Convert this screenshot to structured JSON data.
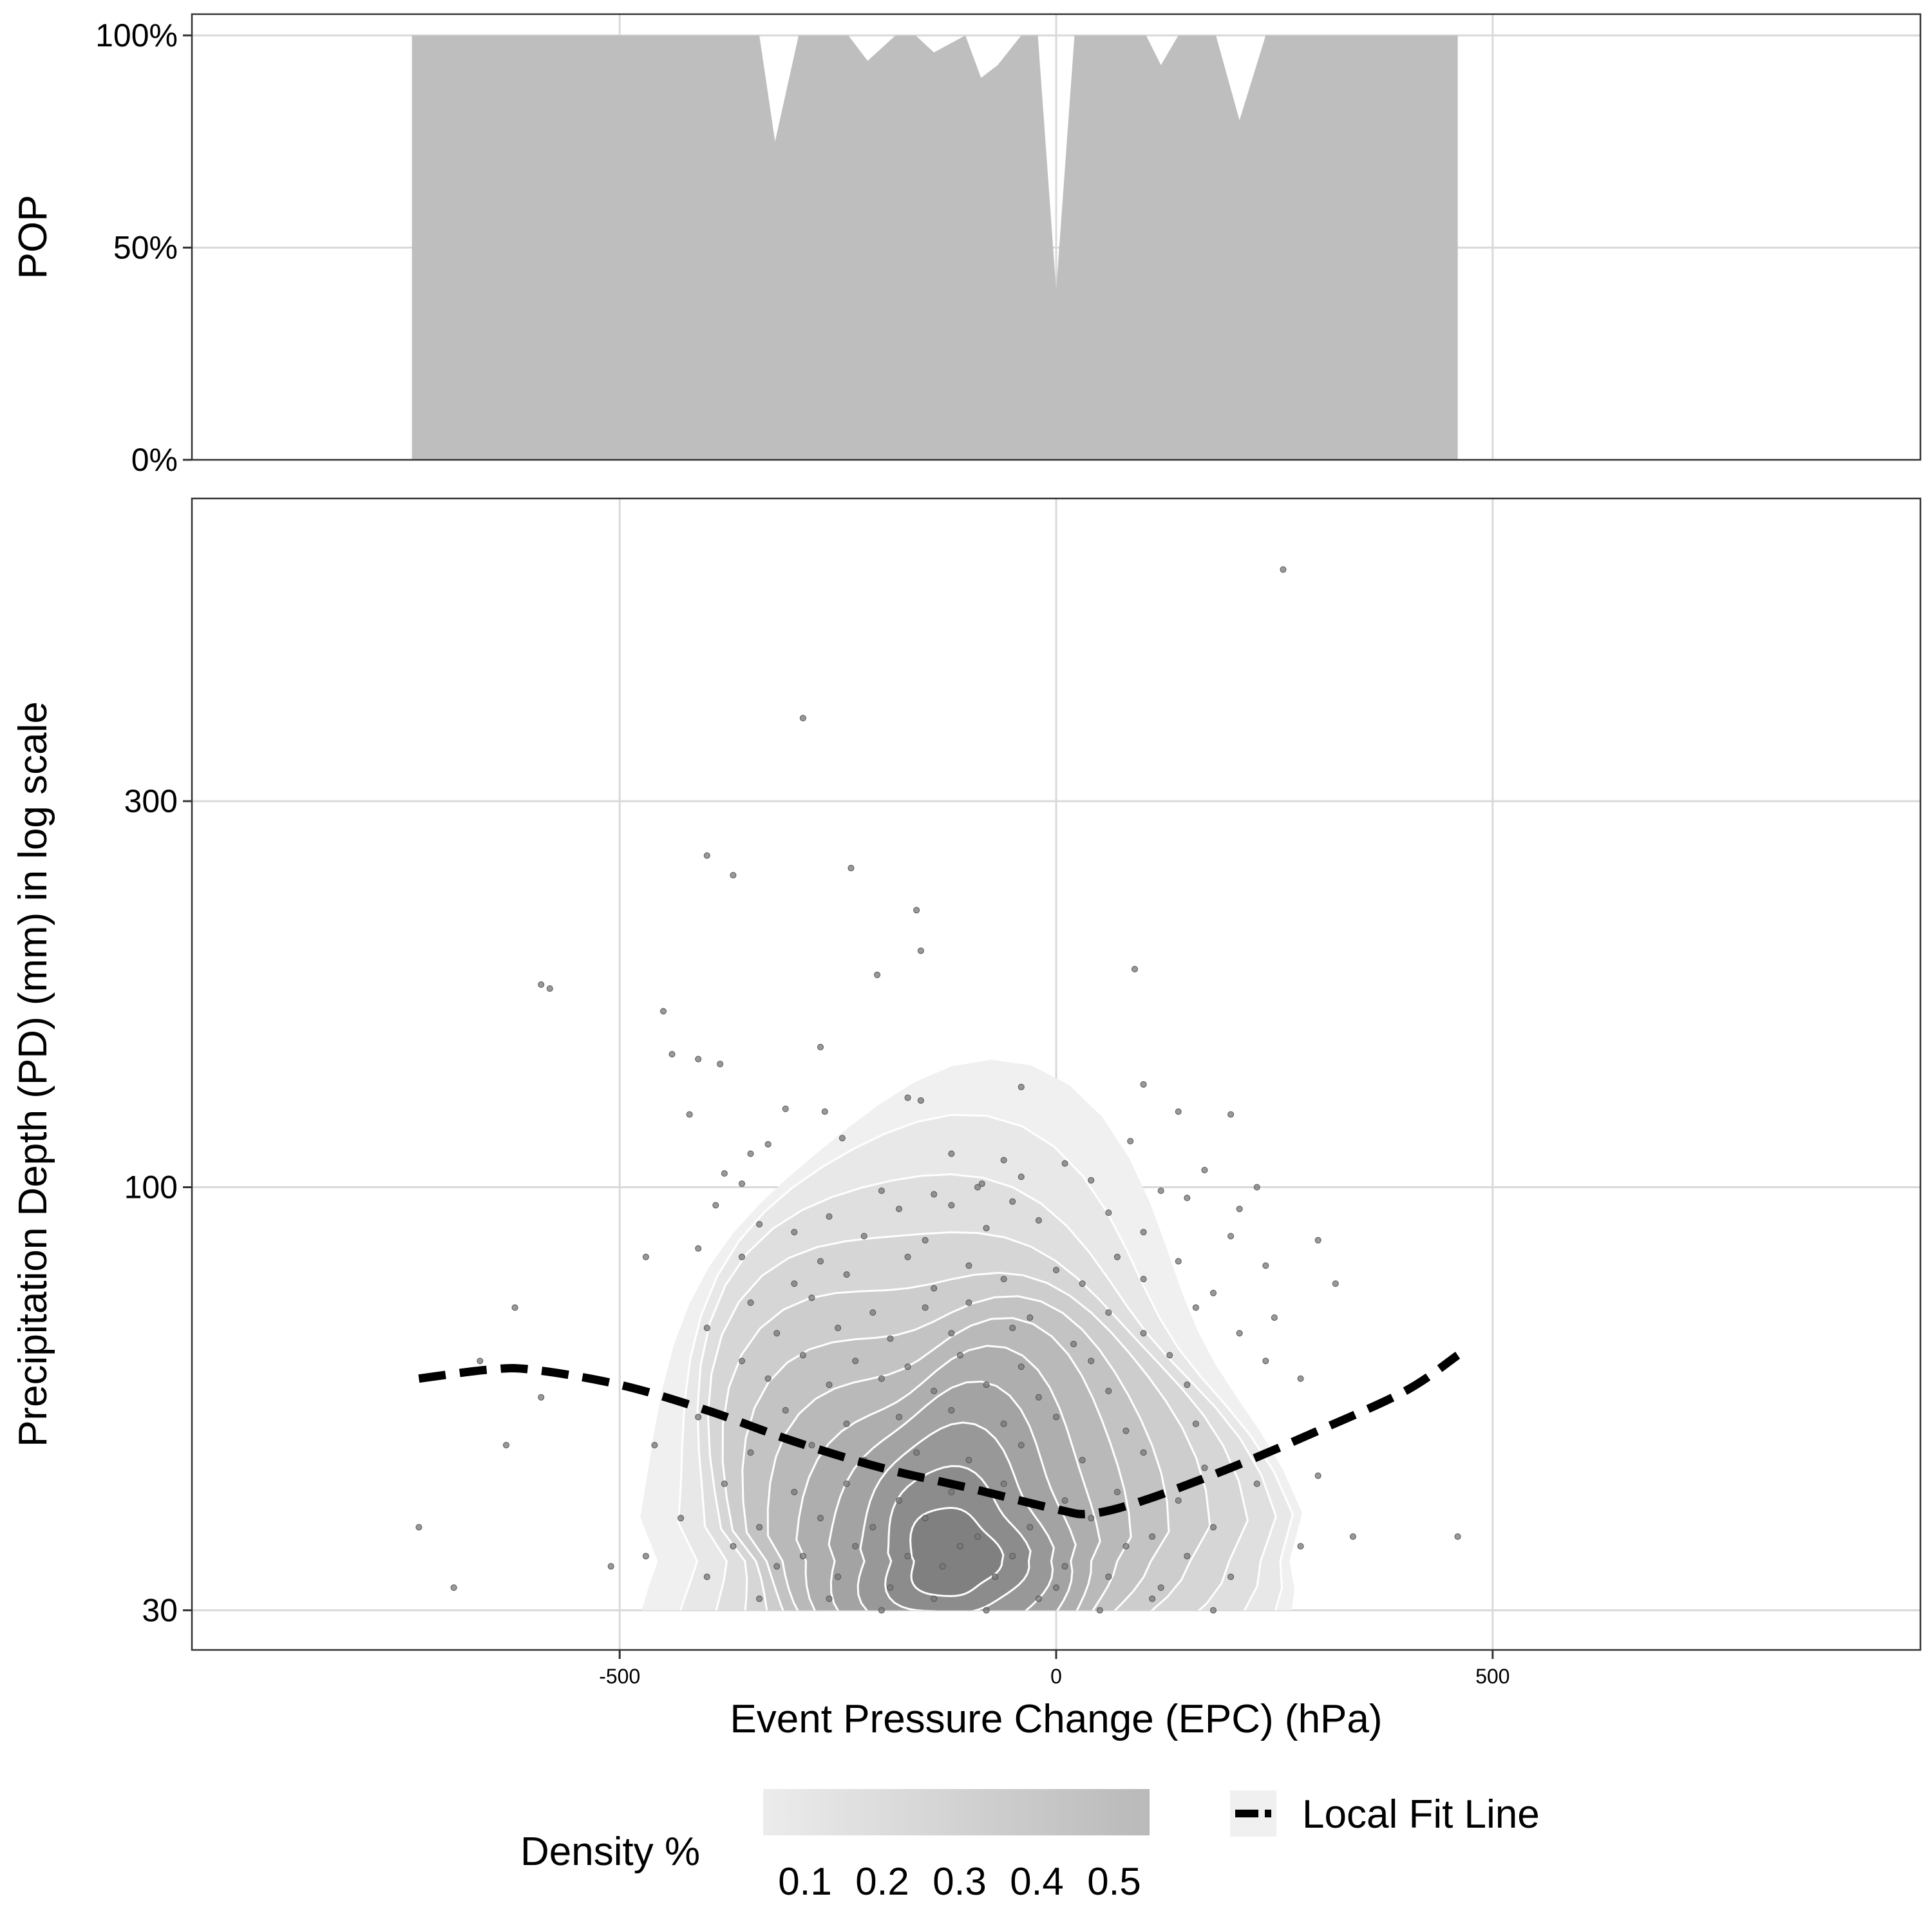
{
  "chart_data": [
    {
      "type": "area",
      "ylabel": "POP",
      "y_ticks": [
        "0%",
        "50%",
        "100%"
      ],
      "ylim": [
        0,
        1.05
      ],
      "xlim": [
        -990,
        990
      ],
      "grid": true,
      "x": [
        -738,
        -340,
        -322,
        -295,
        -238,
        -216,
        -184,
        -161,
        -140,
        -104,
        -86,
        -67,
        -40,
        -21,
        0,
        21,
        40,
        103,
        120,
        140,
        183,
        210,
        240,
        460
      ],
      "values": [
        1.0,
        1.0,
        0.75,
        1.0,
        1.0,
        0.94,
        1.0,
        1.0,
        0.96,
        1.0,
        0.9,
        0.93,
        1.0,
        1.0,
        0.4,
        1.0,
        1.0,
        1.0,
        0.93,
        1.0,
        1.0,
        0.8,
        1.0,
        1.0
      ]
    },
    {
      "type": "scatter",
      "xlabel": "Event Pressure Change (EPC) (hPa)",
      "ylabel": "Precipitation Depth (PD) (mm) in log scale",
      "x_ticks": [
        "-500",
        "0",
        "500"
      ],
      "y_ticks": [
        "30",
        "100",
        "300"
      ],
      "y_scale": "log",
      "xlim": [
        -990,
        990
      ],
      "ylim": [
        26.8,
        710
      ],
      "grid": true,
      "series": [
        {
          "name": "Local Fit Line",
          "x": [
            -730,
            -650,
            -600,
            -500,
            -400,
            -300,
            -200,
            -100,
            0,
            40,
            100,
            200,
            300,
            400,
            460
          ],
          "y": [
            58,
            59.5,
            59.5,
            57,
            53,
            48.5,
            45,
            42.5,
            40,
            39.5,
            41,
            45,
            50,
            56,
            62
          ]
        },
        {
          "points": [
            [
              260,
              580
            ],
            [
              -290,
              380
            ],
            [
              -400,
              257
            ],
            [
              -370,
              243
            ],
            [
              -235,
              248
            ],
            [
              -160,
              220
            ],
            [
              -155,
              196
            ],
            [
              -205,
              183
            ],
            [
              90,
              186
            ],
            [
              -590,
              178
            ],
            [
              -580,
              176
            ],
            [
              -450,
              165
            ],
            [
              -270,
              149
            ],
            [
              -440,
              146
            ],
            [
              -410,
              144
            ],
            [
              -385,
              142
            ],
            [
              100,
              134
            ],
            [
              -40,
              133
            ],
            [
              -155,
              128
            ],
            [
              -170,
              129
            ],
            [
              -310,
              125
            ],
            [
              -265,
              124
            ],
            [
              -420,
              123
            ],
            [
              140,
              124
            ],
            [
              200,
              123
            ],
            [
              -245,
              115
            ],
            [
              85,
              114
            ],
            [
              -120,
              110
            ],
            [
              10,
              107
            ],
            [
              -85,
              101
            ],
            [
              -60,
              108
            ],
            [
              -330,
              113
            ],
            [
              -350,
              110
            ],
            [
              -380,
              104
            ],
            [
              -360,
              101
            ],
            [
              -200,
              99
            ],
            [
              -140,
              98
            ],
            [
              -90,
              100
            ],
            [
              -40,
              103
            ],
            [
              40,
              102
            ],
            [
              120,
              99
            ],
            [
              170,
              105
            ],
            [
              230,
              100
            ],
            [
              -390,
              95
            ],
            [
              -260,
              92
            ],
            [
              -180,
              94
            ],
            [
              -120,
              95
            ],
            [
              -50,
              96
            ],
            [
              60,
              93
            ],
            [
              150,
              97
            ],
            [
              210,
              94
            ],
            [
              -340,
              90
            ],
            [
              -300,
              88
            ],
            [
              -220,
              87
            ],
            [
              -150,
              86
            ],
            [
              -80,
              89
            ],
            [
              -20,
              91
            ],
            [
              100,
              88
            ],
            [
              200,
              87
            ],
            [
              300,
              86
            ],
            [
              -470,
              82
            ],
            [
              -410,
              84
            ],
            [
              -360,
              82
            ],
            [
              -270,
              81
            ],
            [
              -170,
              82
            ],
            [
              -100,
              80
            ],
            [
              0,
              79
            ],
            [
              70,
              82
            ],
            [
              140,
              81
            ],
            [
              240,
              80
            ],
            [
              -300,
              76
            ],
            [
              -240,
              78
            ],
            [
              -140,
              75
            ],
            [
              -60,
              77
            ],
            [
              30,
              76
            ],
            [
              100,
              77
            ],
            [
              180,
              74
            ],
            [
              320,
              76
            ],
            [
              -620,
              71
            ],
            [
              -350,
              72
            ],
            [
              -280,
              73
            ],
            [
              -210,
              70
            ],
            [
              -150,
              71
            ],
            [
              -100,
              72
            ],
            [
              -30,
              69
            ],
            [
              60,
              70
            ],
            [
              160,
              71
            ],
            [
              250,
              69
            ],
            [
              -400,
              67
            ],
            [
              -320,
              66
            ],
            [
              -250,
              67
            ],
            [
              -190,
              65
            ],
            [
              -120,
              66
            ],
            [
              -50,
              67
            ],
            [
              20,
              64
            ],
            [
              100,
              66
            ],
            [
              210,
              66
            ],
            [
              -360,
              61
            ],
            [
              -290,
              62
            ],
            [
              -230,
              61
            ],
            [
              -170,
              60
            ],
            [
              -110,
              62
            ],
            [
              -40,
              60
            ],
            [
              40,
              61
            ],
            [
              130,
              62
            ],
            [
              240,
              61
            ],
            [
              -660,
              61
            ],
            [
              -330,
              58
            ],
            [
              -260,
              57
            ],
            [
              -200,
              58
            ],
            [
              -140,
              56
            ],
            [
              -80,
              57
            ],
            [
              -20,
              55
            ],
            [
              60,
              56
            ],
            [
              150,
              57
            ],
            [
              280,
              58
            ],
            [
              -590,
              55
            ],
            [
              -410,
              52
            ],
            [
              -310,
              53
            ],
            [
              -240,
              51
            ],
            [
              -180,
              52
            ],
            [
              -120,
              53
            ],
            [
              -60,
              51
            ],
            [
              0,
              52
            ],
            [
              80,
              50
            ],
            [
              160,
              51
            ],
            [
              -630,
              48
            ],
            [
              -460,
              48
            ],
            [
              -350,
              47
            ],
            [
              -280,
              48
            ],
            [
              -220,
              46
            ],
            [
              -160,
              47
            ],
            [
              -100,
              46
            ],
            [
              -40,
              48
            ],
            [
              30,
              46
            ],
            [
              100,
              47
            ],
            [
              170,
              45
            ],
            [
              300,
              44
            ],
            [
              -380,
              43
            ],
            [
              -300,
              42
            ],
            [
              -240,
              43
            ],
            [
              -180,
              41
            ],
            [
              -120,
              42
            ],
            [
              -60,
              43
            ],
            [
              10,
              41
            ],
            [
              70,
              42
            ],
            [
              140,
              41
            ],
            [
              230,
              43
            ],
            [
              -430,
              39
            ],
            [
              -340,
              38
            ],
            [
              -270,
              39
            ],
            [
              -210,
              38
            ],
            [
              -150,
              39
            ],
            [
              -90,
              37
            ],
            [
              -30,
              38
            ],
            [
              40,
              39
            ],
            [
              110,
              37
            ],
            [
              180,
              38
            ],
            [
              -730,
              38
            ],
            [
              -370,
              36
            ],
            [
              -290,
              35
            ],
            [
              -230,
              36
            ],
            [
              -170,
              35
            ],
            [
              -110,
              36
            ],
            [
              -50,
              35
            ],
            [
              10,
              34
            ],
            [
              80,
              36
            ],
            [
              150,
              35
            ],
            [
              280,
              36
            ],
            [
              460,
              37
            ],
            [
              340,
              37
            ],
            [
              -470,
              35
            ],
            [
              -510,
              34
            ],
            [
              -400,
              33
            ],
            [
              -320,
              34
            ],
            [
              -250,
              33
            ],
            [
              -190,
              32
            ],
            [
              -130,
              34
            ],
            [
              -70,
              33
            ],
            [
              0,
              32
            ],
            [
              60,
              33
            ],
            [
              120,
              32
            ],
            [
              200,
              33
            ],
            [
              -690,
              32
            ],
            [
              -340,
              31
            ],
            [
              -260,
              31
            ],
            [
              -200,
              30
            ],
            [
              -140,
              31
            ],
            [
              -80,
              30
            ],
            [
              -20,
              31
            ],
            [
              50,
              30
            ],
            [
              110,
              31
            ],
            [
              180,
              30
            ]
          ]
        }
      ]
    }
  ],
  "legend": {
    "density_title": "Density %",
    "density_ticks": [
      "0.1",
      "0.2",
      "0.3",
      "0.4",
      "0.5"
    ],
    "fit_label": "Local Fit Line"
  }
}
